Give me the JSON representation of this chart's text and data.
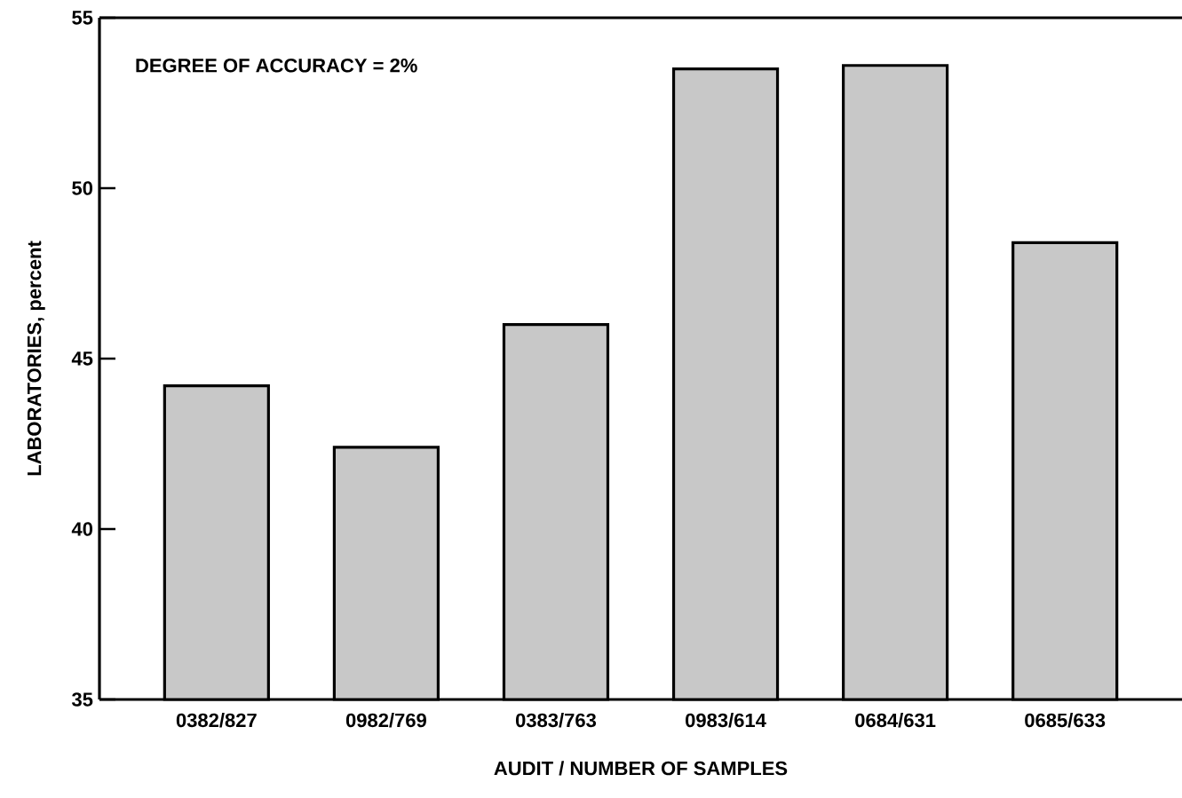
{
  "chart_data": {
    "type": "bar",
    "xlabel": "AUDIT / NUMBER OF SAMPLES",
    "ylabel": "LABORATORIES, percent",
    "annotations": [
      "DEGREE OF ACCURACY = 2%"
    ],
    "categories": [
      "0382/827",
      "0982/769",
      "0383/763",
      "0983/614",
      "0684/631",
      "0685/633"
    ],
    "values": [
      44.2,
      42.4,
      46.0,
      53.5,
      53.6,
      48.4
    ],
    "color": "#c8c8c8",
    "ylim": [
      35,
      55
    ],
    "yticks": [
      35,
      40,
      45,
      50,
      55
    ]
  }
}
